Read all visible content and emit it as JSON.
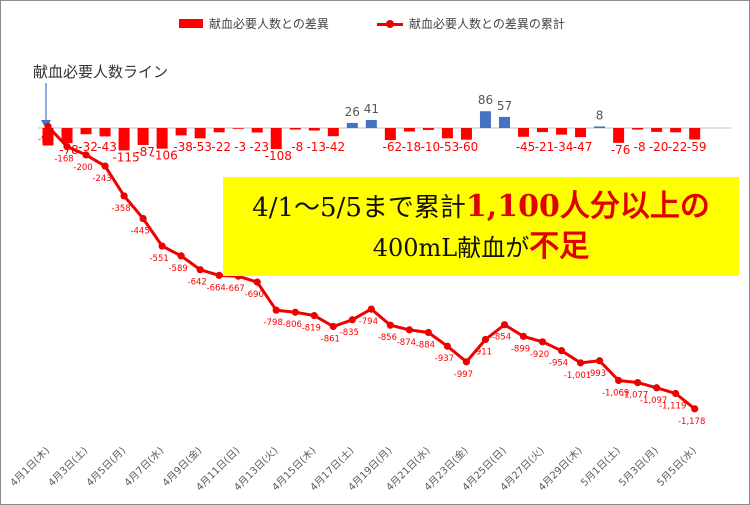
{
  "legend": {
    "bar_label": "献血必要人数との差異",
    "line_label": "献血必要人数との差異の累計"
  },
  "baseline_label": "献血必要人数ライン",
  "note": {
    "line1_prefix": "4/1～5/5まで累計",
    "line1_highlight": "1,100人分以上の",
    "line2_prefix": "400mL献血が",
    "line2_highlight": "不足"
  },
  "colors": {
    "negative_bar": "#ff0000",
    "positive_bar": "#4472c4",
    "line": "#ee0000",
    "note_background": "#ffff00",
    "highlight_text": "#e00000"
  },
  "chart_data": {
    "type": "bar+line",
    "x_labels_visible": [
      "4月1日(木)",
      "4月3日(土)",
      "4月5日(月)",
      "4月7日(水)",
      "4月9日(金)",
      "4月11日(日)",
      "4月13日(火)",
      "4月15日(木)",
      "4月17日(土)",
      "4月19日(月)",
      "4月21日(水)",
      "4月23日(金)",
      "4月25日(日)",
      "4月27日(火)",
      "4月29日(木)",
      "5月1日(土)",
      "5月3日(月)",
      "5月5日(水)"
    ],
    "x_labels_every": 2,
    "series": [
      {
        "name": "献血必要人数との差異",
        "type": "bar",
        "values": [
          -90,
          -78,
          -32,
          -43,
          -115,
          -87,
          -106,
          -38,
          -53,
          -22,
          -3,
          -23,
          -108,
          -8,
          -13,
          -42,
          26,
          41,
          -62,
          -18,
          -10,
          -53,
          -60,
          86,
          57,
          -45,
          -21,
          -34,
          -47,
          8,
          -76,
          -8,
          -20,
          -22,
          -59
        ],
        "value_labels": [
          "",
          "-78",
          "-32",
          "-43",
          "-115",
          "-87",
          "-106",
          "-38",
          "-53",
          "-22",
          "-3",
          "-23",
          "-108",
          "-8",
          "-13",
          "-42",
          "26",
          "41",
          "-62",
          "-18",
          "-10",
          "-53",
          "-60",
          "86",
          "57",
          "-45",
          "-21",
          "-34",
          "-47",
          "8",
          "-76",
          "-8",
          "-20",
          "-22",
          "-59"
        ]
      },
      {
        "name": "献血必要人数との差異の累計",
        "type": "line",
        "values": [
          -90,
          -168,
          -200,
          -243,
          -358,
          -445,
          -551,
          -589,
          -642,
          -664,
          -667,
          -690,
          -798,
          -806,
          -819,
          -861,
          -835,
          -794,
          -856,
          -874,
          -884,
          -937,
          -997,
          -911,
          -854,
          -899,
          -920,
          -954,
          -1001,
          -993,
          -1069,
          -1077,
          -1097,
          -1119,
          -1178
        ],
        "value_labels": [
          "-90",
          "-168",
          "-200",
          "-243",
          "-358",
          "-445",
          "-551",
          "-589",
          "-642",
          "-664",
          "-667",
          "-690",
          "-798",
          "-806",
          "-819",
          "-861",
          "-835",
          "-794",
          "-856",
          "-874",
          "-884",
          "-937",
          "-997",
          "-911",
          "-854",
          "-899",
          "-920",
          "-954",
          "-1,001",
          "-993",
          "-1,069",
          "-1,077",
          "-1,097",
          "-1,119",
          "-1,178"
        ]
      }
    ],
    "grid": false,
    "legend_position": "top"
  }
}
